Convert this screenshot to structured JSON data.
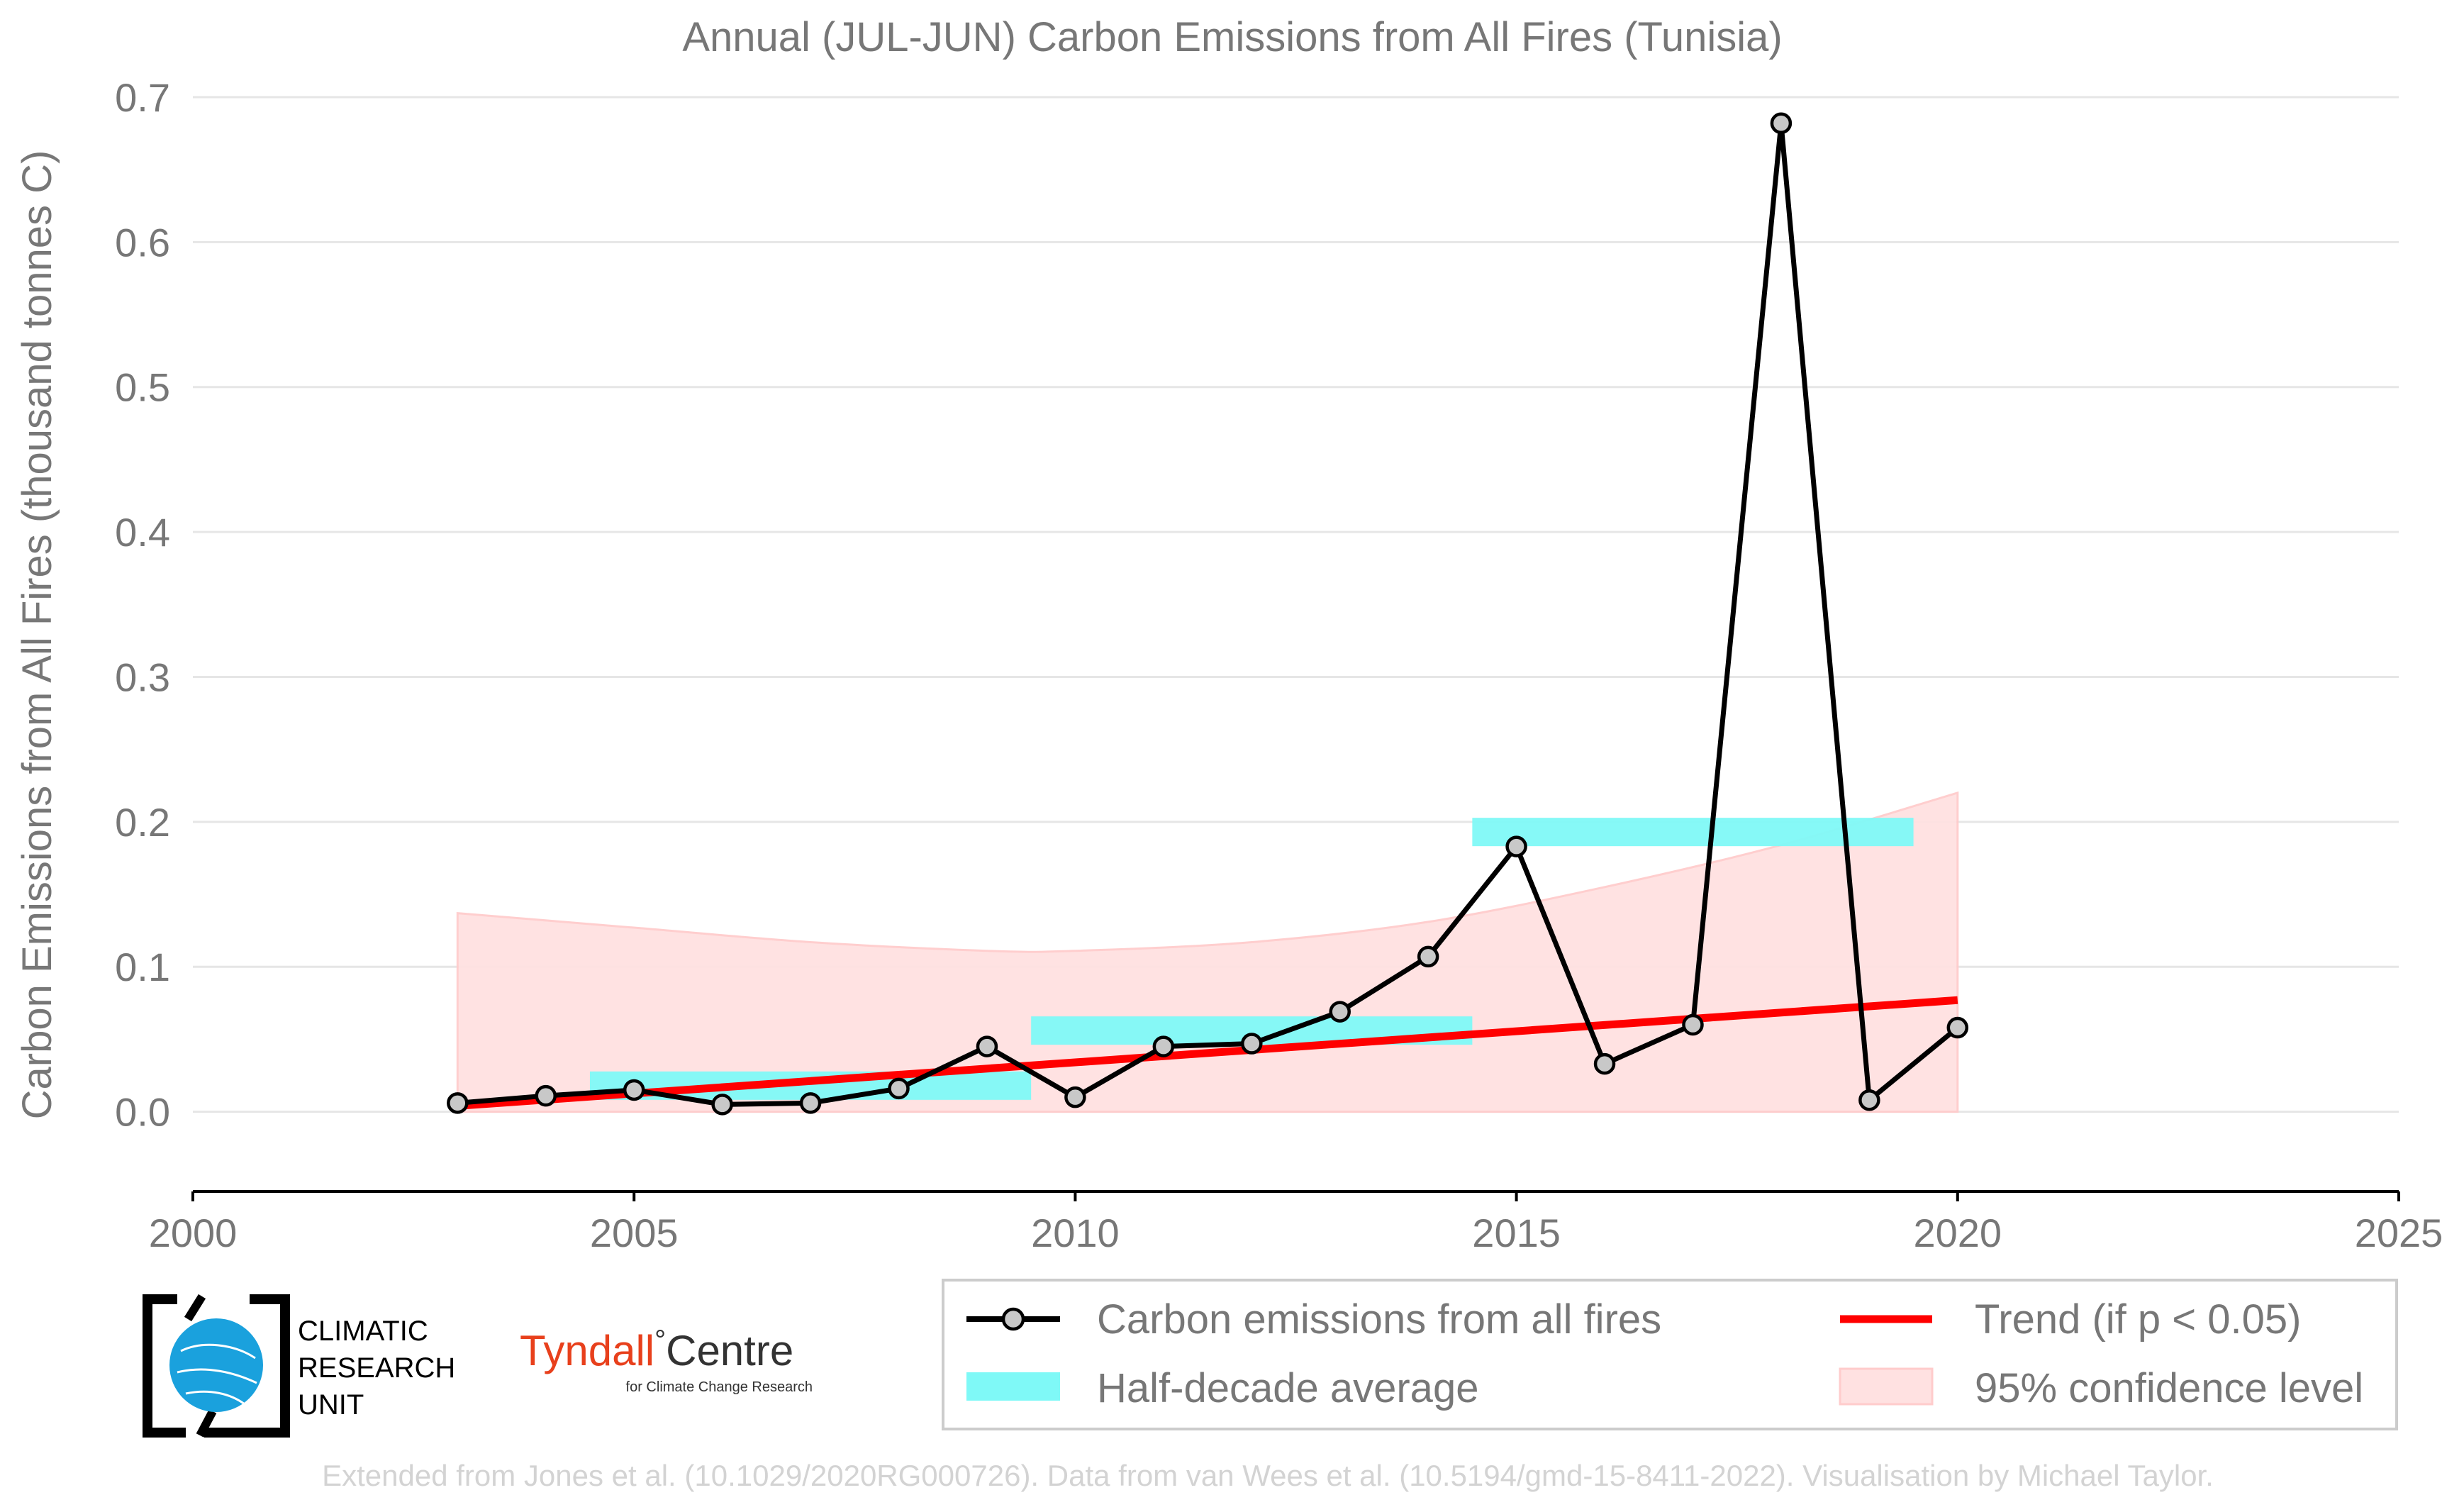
{
  "chart_data": {
    "type": "line",
    "title": "Annual (JUL-JUN) Carbon Emissions from All Fires (Tunisia)",
    "xlabel": "",
    "ylabel": "Carbon Emissions from All Fires (thousand tonnes C)",
    "xlim": [
      2000,
      2025
    ],
    "ylim": [
      -0.055,
      0.7
    ],
    "xticks": [
      2000,
      2005,
      2010,
      2015,
      2020,
      2025
    ],
    "yticks": [
      0.0,
      0.1,
      0.2,
      0.3,
      0.4,
      0.5,
      0.6,
      0.7
    ],
    "grid": "horizontal",
    "legend_position": "bottom-right, below plot",
    "series": [
      {
        "name": "Carbon emissions from all fires",
        "color": "#000000",
        "marker_fill": "#c8c8c8",
        "x": [
          2003,
          2004,
          2005,
          2006,
          2007,
          2008,
          2009,
          2010,
          2011,
          2012,
          2013,
          2014,
          2015,
          2016,
          2017,
          2018,
          2019,
          2020
        ],
        "y": [
          0.006,
          0.011,
          0.015,
          0.005,
          0.006,
          0.016,
          0.045,
          0.01,
          0.045,
          0.047,
          0.069,
          0.107,
          0.183,
          0.033,
          0.06,
          0.682,
          0.008,
          0.058
        ]
      }
    ],
    "half_decade_average": {
      "name": "Half-decade average",
      "color": "#7ff9f7",
      "segments": [
        {
          "x0": 2004.5,
          "x1": 2009.5,
          "y": 0.018
        },
        {
          "x0": 2009.5,
          "x1": 2014.5,
          "y": 0.056
        },
        {
          "x0": 2014.5,
          "x1": 2019.5,
          "y": 0.193
        }
      ]
    },
    "trend": {
      "name": "Trend (if p < 0.05)",
      "color": "#ff0000",
      "x": [
        2003,
        2020
      ],
      "y": [
        0.004,
        0.077
      ]
    },
    "confidence": {
      "name": "95% confidence level",
      "color": "#ffe1e1",
      "x": [
        2003,
        2005,
        2007,
        2009,
        2010,
        2012,
        2014,
        2016,
        2018,
        2020
      ],
      "upper": [
        0.137,
        0.127,
        0.117,
        0.111,
        0.111,
        0.117,
        0.131,
        0.155,
        0.184,
        0.22
      ],
      "lower": [
        0.0,
        0.0,
        0.0,
        0.0,
        0.0,
        0.0,
        0.0,
        0.0,
        0.0,
        0.0
      ]
    }
  },
  "legend": {
    "items": [
      {
        "label": "Carbon emissions from all fires",
        "key": "line-marker"
      },
      {
        "label": "Trend (if p < 0.05)",
        "key": "trend"
      },
      {
        "label": "Half-decade average",
        "key": "band"
      },
      {
        "label": "95% confidence level",
        "key": "confidence"
      }
    ]
  },
  "logos": {
    "cru_lines": [
      "CLIMATIC",
      "RESEARCH",
      "UNIT"
    ],
    "tyndall_name": "Tyndall",
    "tyndall_degree": "°",
    "tyndall_centre": "Centre",
    "tyndall_sub": "for Climate Change Research"
  },
  "credit": "Extended from Jones et al. (10.1029/2020RG000726). Data from van Wees et al. (10.5194/gmd-15-8411-2022). Visualisation by Michael Taylor.",
  "colors": {
    "text_gray": "#777777",
    "credit_gray": "#d3d3d3",
    "grid": "#e6e6e6",
    "axis": "#000000",
    "tyndall_red": "#e8401c"
  }
}
